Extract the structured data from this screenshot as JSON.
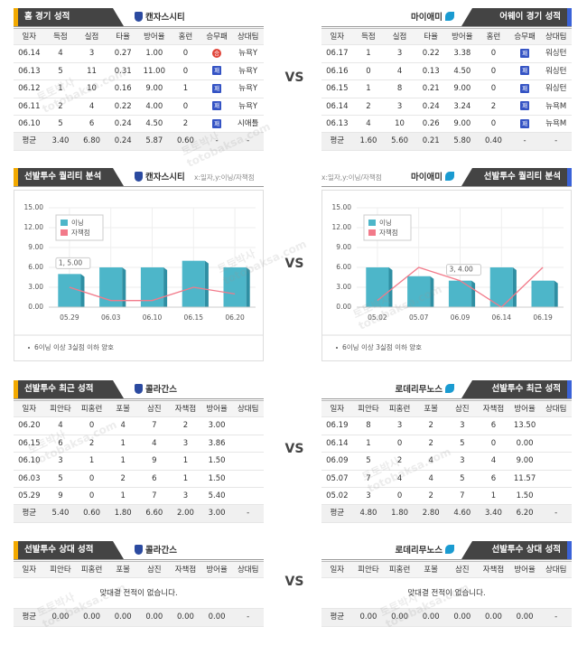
{
  "vs": "VS",
  "watermark": [
    "토토박사",
    "totobaksa.com"
  ],
  "tables": [
    {
      "left": {
        "title": "홈 경기 성적",
        "team": "캔자스시티",
        "columns": [
          "일자",
          "득점",
          "실점",
          "타율",
          "방어율",
          "홈런",
          "승무패",
          "상대팀"
        ],
        "rows": [
          [
            "06.14",
            "4",
            "3",
            "0.27",
            "1.00",
            "0",
            "승",
            "뉴욕Y"
          ],
          [
            "06.13",
            "5",
            "11",
            "0.31",
            "11.00",
            "0",
            "패",
            "뉴욕Y"
          ],
          [
            "06.12",
            "1",
            "10",
            "0.16",
            "9.00",
            "1",
            "패",
            "뉴욕Y"
          ],
          [
            "06.11",
            "2",
            "4",
            "0.22",
            "4.00",
            "0",
            "패",
            "뉴욕Y"
          ],
          [
            "06.10",
            "5",
            "6",
            "0.24",
            "4.50",
            "2",
            "패",
            "시애틀"
          ]
        ],
        "average": [
          "평균",
          "3.40",
          "6.80",
          "0.24",
          "5.87",
          "0.60",
          "-",
          "-"
        ]
      },
      "right": {
        "title": "어웨이 경기 성적",
        "team": "마이애미",
        "columns": [
          "일자",
          "득점",
          "실점",
          "타율",
          "방어율",
          "홈런",
          "승무패",
          "상대팀"
        ],
        "rows": [
          [
            "06.17",
            "1",
            "3",
            "0.22",
            "3.38",
            "0",
            "패",
            "워싱턴"
          ],
          [
            "06.16",
            "0",
            "4",
            "0.13",
            "4.50",
            "0",
            "패",
            "워싱턴"
          ],
          [
            "06.15",
            "1",
            "8",
            "0.21",
            "9.00",
            "0",
            "패",
            "워싱턴"
          ],
          [
            "06.14",
            "2",
            "3",
            "0.24",
            "3.24",
            "2",
            "패",
            "뉴욕M"
          ],
          [
            "06.13",
            "4",
            "10",
            "0.26",
            "9.00",
            "0",
            "패",
            "뉴욕M"
          ]
        ],
        "average": [
          "평균",
          "1.60",
          "5.60",
          "0.21",
          "5.80",
          "0.40",
          "-",
          "-"
        ]
      }
    },
    {
      "left": {
        "title": "선발투수 최근 성적",
        "team": "콜라간스",
        "columns": [
          "일자",
          "피안타",
          "피홈런",
          "포볼",
          "삼진",
          "자책점",
          "방어율",
          "상대팀"
        ],
        "rows": [
          [
            "06.20",
            "4",
            "0",
            "4",
            "7",
            "2",
            "3.00"
          ],
          [
            "06.15",
            "6",
            "2",
            "1",
            "4",
            "3",
            "3.86"
          ],
          [
            "06.10",
            "3",
            "1",
            "1",
            "9",
            "1",
            "1.50"
          ],
          [
            "06.03",
            "5",
            "0",
            "2",
            "6",
            "1",
            "1.50"
          ],
          [
            "05.29",
            "9",
            "0",
            "1",
            "7",
            "3",
            "5.40"
          ]
        ],
        "average": [
          "평균",
          "5.40",
          "0.60",
          "1.80",
          "6.60",
          "2.00",
          "3.00",
          "-"
        ]
      },
      "right": {
        "title": "선발투수 최근 성적",
        "team": "로데리무노스",
        "columns": [
          "일자",
          "피안타",
          "피홈런",
          "포볼",
          "삼진",
          "자책점",
          "방어율",
          "상대팀"
        ],
        "rows": [
          [
            "06.19",
            "8",
            "3",
            "2",
            "3",
            "6",
            "13.50"
          ],
          [
            "06.14",
            "1",
            "0",
            "2",
            "5",
            "0",
            "0.00"
          ],
          [
            "06.09",
            "5",
            "2",
            "4",
            "3",
            "4",
            "9.00"
          ],
          [
            "05.07",
            "7",
            "4",
            "4",
            "5",
            "6",
            "11.57"
          ],
          [
            "05.02",
            "3",
            "0",
            "2",
            "7",
            "1",
            "1.50"
          ]
        ],
        "average": [
          "평균",
          "4.80",
          "1.80",
          "2.80",
          "4.60",
          "3.40",
          "6.20",
          "-"
        ]
      }
    },
    {
      "left": {
        "title": "선발투수 상대 성적",
        "team": "콜라간스",
        "columns": [
          "일자",
          "피안타",
          "피홈런",
          "포볼",
          "삼진",
          "자책점",
          "방어율",
          "상대팀"
        ],
        "message": "맞대결 전적이 없습니다.",
        "average": [
          "평균",
          "0.00",
          "0.00",
          "0.00",
          "0.00",
          "0.00",
          "0.00",
          "-"
        ]
      },
      "right": {
        "title": "선발투수 상대 성적",
        "team": "로데리무노스",
        "columns": [
          "일자",
          "피안타",
          "피홈런",
          "포볼",
          "삼진",
          "자책점",
          "방어율",
          "상대팀"
        ],
        "message": "맞대결 전적이 없습니다.",
        "average": [
          "평균",
          "0.00",
          "0.00",
          "0.00",
          "0.00",
          "0.00",
          "0.00",
          "-"
        ]
      }
    }
  ],
  "chart_data": [
    {
      "type": "bar",
      "title": "선발투수 퀄리티 분석",
      "team": "캔자스시티",
      "subtitle": "x:일자,y:이닝/자책점",
      "categories": [
        "05.29",
        "06.03",
        "06.10",
        "06.15",
        "06.20"
      ],
      "series": [
        {
          "name": "이닝",
          "color": "#4db6c9",
          "values": [
            5,
            6,
            6,
            7,
            6
          ]
        },
        {
          "name": "자책점",
          "color": "#f27a8a",
          "type": "line",
          "values": [
            3,
            1,
            1,
            3,
            2
          ]
        }
      ],
      "ylim": [
        0,
        15
      ],
      "yticks": [
        {
          "value": 0,
          "label": "0.00"
        },
        {
          "value": 3,
          "label": "3.00"
        },
        {
          "value": 6,
          "label": "6.00"
        },
        {
          "value": 9,
          "label": "9.00"
        },
        {
          "value": 12,
          "label": "12.00"
        },
        {
          "value": 15,
          "label": "15.00"
        }
      ],
      "grid": true,
      "legend": "upper left",
      "annotation": "1, 5.00",
      "note": "6이닝 이상 3실점 이하 양호"
    },
    {
      "type": "bar",
      "title": "선발투수 퀄리티 분석",
      "team": "마이애미",
      "subtitle": "x:일자,y:이닝/자책점",
      "categories": [
        "05.02",
        "05.07",
        "06.09",
        "06.14",
        "06.19"
      ],
      "series": [
        {
          "name": "이닝",
          "color": "#4db6c9",
          "values": [
            6,
            4.67,
            4,
            6,
            4
          ]
        },
        {
          "name": "자책점",
          "color": "#f27a8a",
          "type": "line",
          "values": [
            1,
            6,
            4,
            0,
            6
          ]
        }
      ],
      "ylim": [
        0,
        15
      ],
      "yticks": [
        {
          "value": 0,
          "label": "0.00"
        },
        {
          "value": 3,
          "label": "3.00"
        },
        {
          "value": 6,
          "label": "6.00"
        },
        {
          "value": 9,
          "label": "9.00"
        },
        {
          "value": 12,
          "label": "12.00"
        },
        {
          "value": 15,
          "label": "15.00"
        }
      ],
      "grid": true,
      "legend": "upper left",
      "annotation": "3, 4.00",
      "note": "6이닝 이상 3실점 이하 양호"
    }
  ]
}
